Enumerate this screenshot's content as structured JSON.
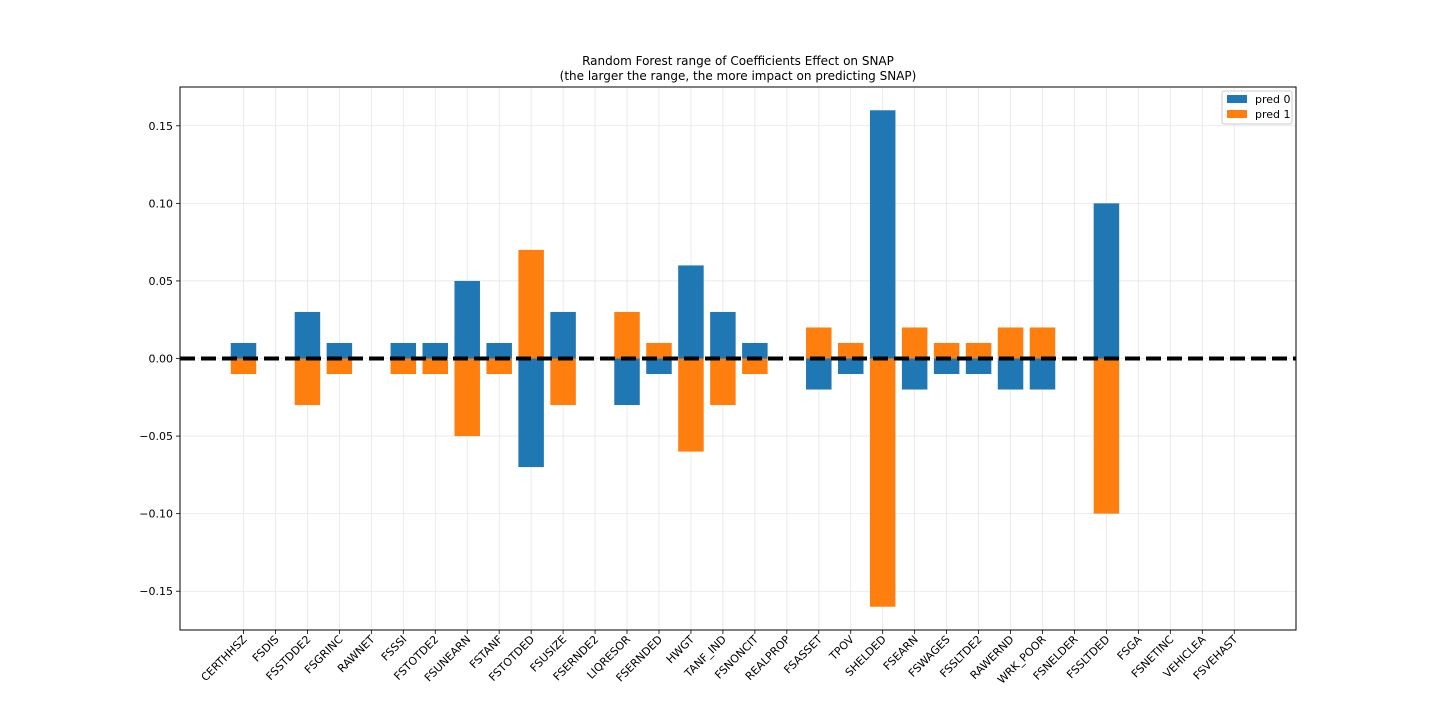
{
  "chart_data": {
    "type": "bar",
    "title": "Random Forest range of Coefficients Effect on SNAP",
    "subtitle": "(the larger the range, the more impact on predicting SNAP)",
    "xlabel": "",
    "ylabel": "",
    "categories": [
      "CERTHHSZ",
      "FSDIS",
      "FSSTDDE2",
      "FSGRINC",
      "RAWNET",
      "FSSSI",
      "FSTOTDE2",
      "FSUNEARN",
      "FSTANF",
      "FSTOTDED",
      "FSUSIZE",
      "FSERNDE2",
      "LIQRESOR",
      "FSERNDED",
      "HWGT",
      "TANF_IND",
      "FSNONCIT",
      "REALPROP",
      "FSASSET",
      "TPOV",
      "SHELDED",
      "FSEARN",
      "FSWAGES",
      "FSSLTDE2",
      "RAWERND",
      "WRK_POOR",
      "FSNELDER",
      "FSSLTDED",
      "FSGA",
      "FSNETINC",
      "VEHICLEA",
      "FSVEHAST"
    ],
    "series": [
      {
        "name": "pred 0",
        "color": "#1f77b4",
        "values": [
          0.01,
          0,
          0.03,
          0.01,
          0,
          0.01,
          0.01,
          0.05,
          0.01,
          -0.07,
          0.03,
          0,
          -0.03,
          -0.01,
          0.06,
          0.03,
          0.01,
          0,
          -0.02,
          -0.01,
          0.16,
          -0.02,
          -0.01,
          -0.01,
          -0.02,
          -0.02,
          0,
          0.1,
          0,
          0,
          0,
          0
        ]
      },
      {
        "name": "pred 1",
        "color": "#ff7f0e",
        "values": [
          -0.01,
          0,
          -0.03,
          -0.01,
          0,
          -0.01,
          -0.01,
          -0.05,
          -0.01,
          0.07,
          -0.03,
          0,
          0.03,
          0.01,
          -0.06,
          -0.03,
          -0.01,
          0,
          0.02,
          0.01,
          -0.16,
          0.02,
          0.01,
          0.01,
          0.02,
          0.02,
          0,
          -0.1,
          0,
          0,
          0,
          0
        ]
      }
    ],
    "draw_order": [
      "pred 1",
      "pred 0"
    ],
    "ylim": [
      -0.175,
      0.175
    ],
    "yticks": [
      "−0.15",
      "−0.10",
      "−0.05",
      "0.00",
      "0.05",
      "0.10",
      "0.15"
    ],
    "ytick_values": [
      -0.15,
      -0.1,
      -0.05,
      0,
      0.05,
      0.1,
      0.15
    ],
    "reference_line": {
      "y": 0,
      "style": "dashed",
      "color": "#000000"
    },
    "grid": true,
    "legend": {
      "position": "top-right",
      "entries": [
        "pred 0",
        "pred 1"
      ]
    }
  }
}
